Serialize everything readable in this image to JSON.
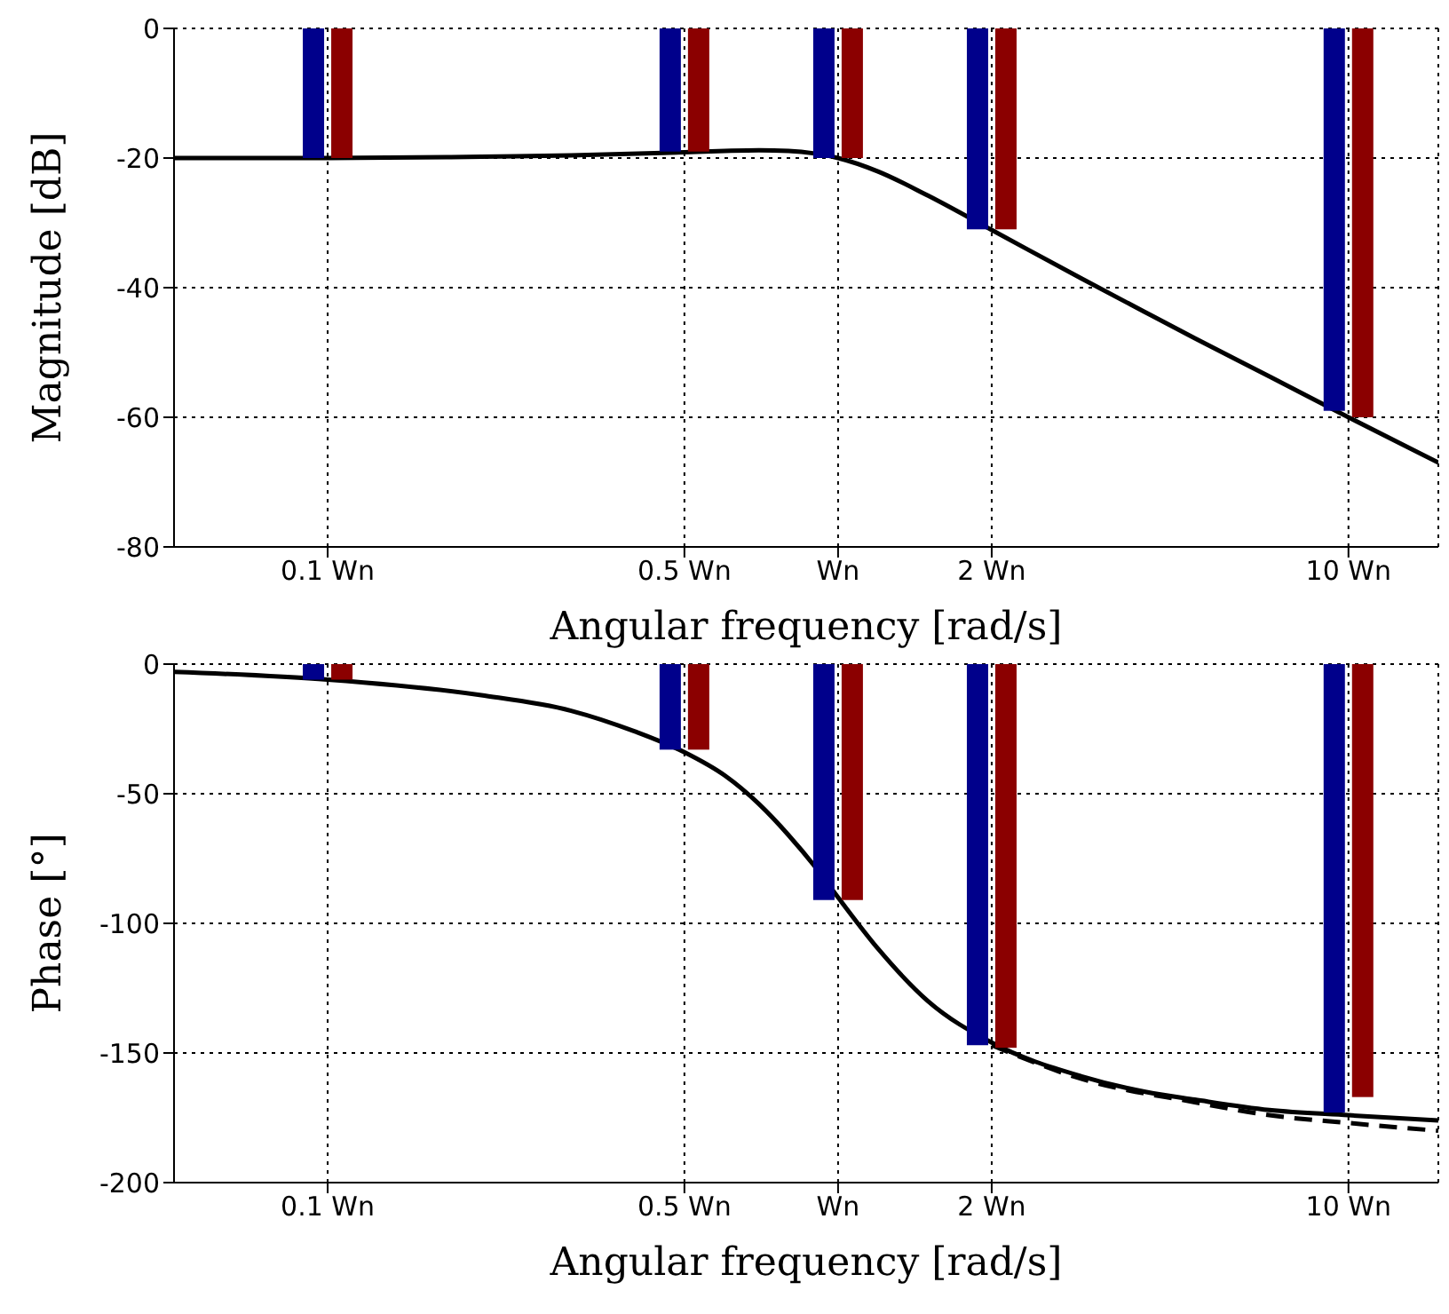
{
  "chart_data": [
    {
      "type": "bar",
      "xlabel": "Angular frequency [rad/s]",
      "ylabel": "Magnitude [dB]",
      "log": "x",
      "grid": true,
      "xlim": [
        0.05,
        15
      ],
      "xticks": [
        {
          "value": 0.1,
          "label": "0.1 Wn"
        },
        {
          "value": 0.5,
          "label": "0.5 Wn"
        },
        {
          "value": 1,
          "label": "Wn"
        },
        {
          "value": 2,
          "label": "2 Wn"
        },
        {
          "value": 10,
          "label": "10 Wn"
        }
      ],
      "ylim": [
        -80,
        0
      ],
      "yticks": [
        -80,
        -60,
        -40,
        -20,
        0
      ],
      "series": [
        {
          "color": "#00008b",
          "x": [
            0.1,
            0.5,
            1,
            2,
            10
          ],
          "values": [
            -20,
            -19,
            -20,
            -31,
            -59
          ]
        },
        {
          "color": "#8b0000",
          "x": [
            0.1,
            0.5,
            1,
            2,
            10
          ],
          "values": [
            -20,
            -19,
            -20,
            -31,
            -60
          ]
        },
        {
          "type": "line",
          "color": "#000000",
          "line_style": "solid",
          "x": [
            0.05,
            0.1,
            0.2,
            0.3,
            0.5,
            0.6,
            0.7,
            0.8,
            0.9,
            1,
            1.2,
            1.5,
            2,
            3,
            4,
            5,
            7,
            10,
            15
          ],
          "values": [
            -20,
            -20,
            -19.8,
            -19.6,
            -19.1,
            -18.9,
            -18.8,
            -18.9,
            -19.3,
            -20,
            -22.1,
            -25.8,
            -31.1,
            -38.6,
            -43.8,
            -47.8,
            -53.7,
            -60,
            -67
          ]
        }
      ]
    },
    {
      "type": "bar",
      "xlabel": "Angular frequency [rad/s]",
      "ylabel": "Phase [°]",
      "log": "x",
      "grid": true,
      "xlim": [
        0.05,
        15
      ],
      "xticks": [
        {
          "value": 0.1,
          "label": "0.1 Wn"
        },
        {
          "value": 0.5,
          "label": "0.5 Wn"
        },
        {
          "value": 1,
          "label": "Wn"
        },
        {
          "value": 2,
          "label": "2 Wn"
        },
        {
          "value": 10,
          "label": "10 Wn"
        }
      ],
      "ylim": [
        -200,
        0
      ],
      "yticks": [
        -200,
        -150,
        -100,
        -50,
        0
      ],
      "series": [
        {
          "color": "#00008b",
          "x": [
            0.1,
            0.5,
            1,
            2,
            10
          ],
          "values": [
            -6,
            -33,
            -91,
            -147,
            -173
          ]
        },
        {
          "color": "#8b0000",
          "x": [
            0.1,
            0.5,
            1,
            2,
            10
          ],
          "values": [
            -6,
            -33,
            -91,
            -148,
            -167
          ]
        },
        {
          "type": "line",
          "color": "#000000",
          "line_style": "solid",
          "x": [
            0.05,
            0.1,
            0.2,
            0.3,
            0.4,
            0.5,
            0.6,
            0.7,
            0.8,
            0.9,
            1,
            1.2,
            1.5,
            2,
            3,
            4,
            5,
            7,
            10,
            15
          ],
          "values": [
            -3,
            -6,
            -12,
            -18,
            -26,
            -34,
            -43,
            -54,
            -66,
            -78,
            -90,
            -110,
            -130,
            -146,
            -159,
            -165,
            -168,
            -172,
            -174,
            -176
          ]
        },
        {
          "type": "line",
          "color": "#000000",
          "line_style": "dashed",
          "x": [
            2,
            3,
            5,
            7,
            10,
            15
          ],
          "values": [
            -147,
            -160,
            -169,
            -174,
            -177,
            -180
          ]
        }
      ]
    }
  ]
}
